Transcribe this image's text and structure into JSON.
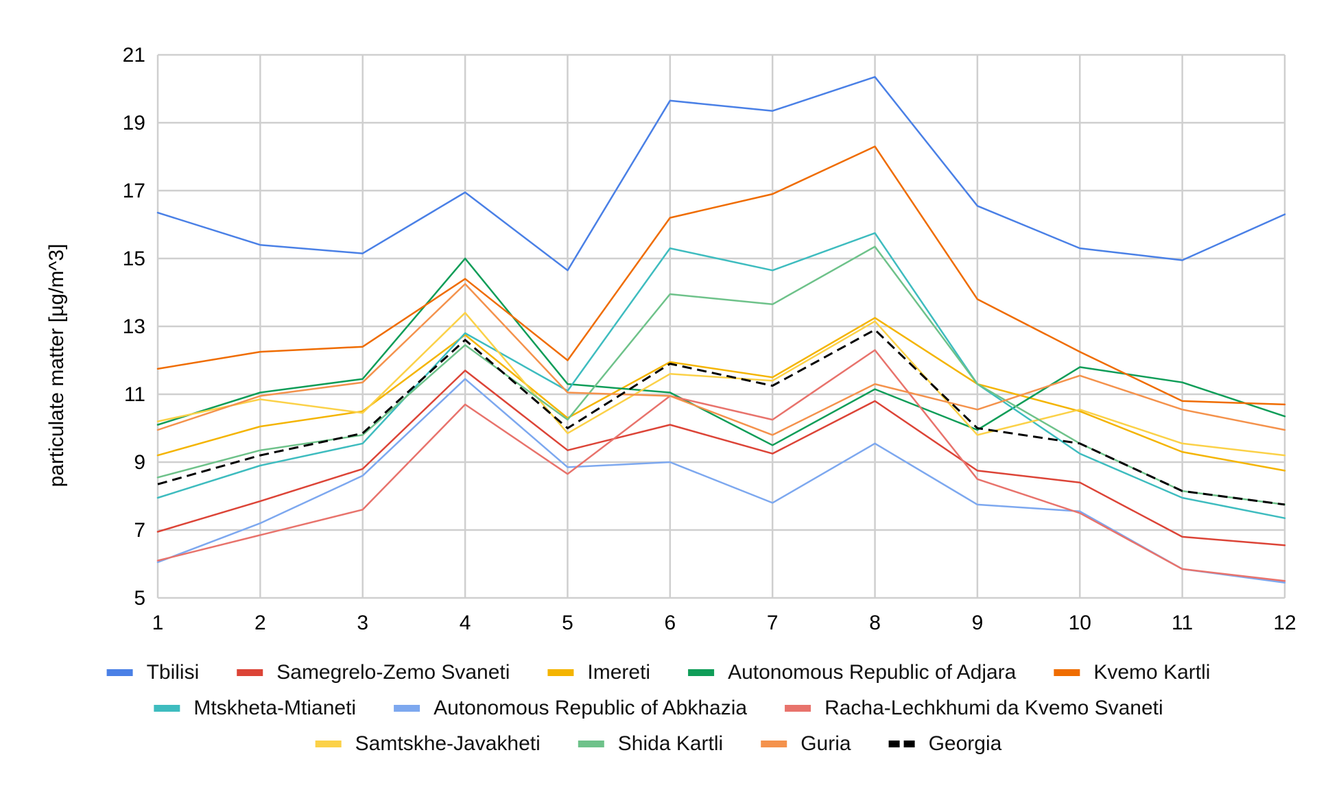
{
  "chart_data": {
    "type": "line",
    "x": [
      1,
      2,
      3,
      4,
      5,
      6,
      7,
      8,
      9,
      10,
      11,
      12
    ],
    "xlim": [
      1,
      12
    ],
    "ylim": [
      5,
      21
    ],
    "yticks": [
      5,
      7,
      9,
      11,
      13,
      15,
      17,
      19,
      21
    ],
    "xticks": [
      1,
      2,
      3,
      4,
      5,
      6,
      7,
      8,
      9,
      10,
      11,
      12
    ],
    "ylabel": "particulate matter [µg/m^3]",
    "xlabel": "",
    "grid": true,
    "legend_position": "bottom",
    "series": [
      {
        "name": "Tbilisi",
        "color": "#4a80e6",
        "width": 2.5,
        "values": [
          16.35,
          15.4,
          15.15,
          16.95,
          14.65,
          19.65,
          19.35,
          20.35,
          16.55,
          15.3,
          14.95,
          16.3
        ]
      },
      {
        "name": "Samegrelo-Zemo Svaneti",
        "color": "#dc4437",
        "width": 2.5,
        "values": [
          6.95,
          7.85,
          8.8,
          11.7,
          9.35,
          10.1,
          9.25,
          10.8,
          8.75,
          8.4,
          6.8,
          6.55
        ]
      },
      {
        "name": "Imereti",
        "color": "#f4b400",
        "width": 2.5,
        "values": [
          9.2,
          10.05,
          10.5,
          12.75,
          10.3,
          11.95,
          11.5,
          13.25,
          11.3,
          10.5,
          9.3,
          8.75
        ]
      },
      {
        "name": "Autonomous Republic of Adjara",
        "color": "#0f9d58",
        "width": 2.5,
        "values": [
          10.1,
          11.05,
          11.45,
          15.0,
          11.3,
          11.05,
          9.5,
          11.15,
          9.95,
          11.8,
          11.35,
          10.35
        ]
      },
      {
        "name": "Kvemo Kartli",
        "color": "#ef6c00",
        "width": 2.5,
        "values": [
          11.75,
          12.25,
          12.4,
          14.4,
          12.0,
          16.2,
          16.9,
          18.3,
          13.8,
          12.25,
          10.8,
          10.7
        ]
      },
      {
        "name": "Mtskheta-Mtianeti",
        "color": "#3ebcbf",
        "width": 2.5,
        "values": [
          7.95,
          8.9,
          9.55,
          12.8,
          11.1,
          15.3,
          14.65,
          15.75,
          11.3,
          9.25,
          7.95,
          7.35
        ]
      },
      {
        "name": "Autonomous Republic of Abkhazia",
        "color": "#7da8ef",
        "width": 2.5,
        "values": [
          6.05,
          7.2,
          8.6,
          11.45,
          8.85,
          9.0,
          7.8,
          9.55,
          7.75,
          7.55,
          5.85,
          5.45
        ]
      },
      {
        "name": "Racha-Lechkhumi da Kvemo Svaneti",
        "color": "#e8736c",
        "width": 2.5,
        "values": [
          6.1,
          6.85,
          7.6,
          10.7,
          8.65,
          10.95,
          10.25,
          12.3,
          8.5,
          7.5,
          5.85,
          5.5
        ]
      },
      {
        "name": "Samtskhe-Javakheti",
        "color": "#fbd148",
        "width": 2.5,
        "values": [
          10.2,
          10.85,
          10.45,
          13.4,
          9.85,
          11.6,
          11.4,
          13.15,
          9.8,
          10.55,
          9.55,
          9.2
        ]
      },
      {
        "name": "Shida Kartli",
        "color": "#6ec28a",
        "width": 2.5,
        "values": [
          8.55,
          9.35,
          9.8,
          12.45,
          10.25,
          13.95,
          13.65,
          15.35,
          11.3,
          9.55,
          8.15,
          7.75
        ]
      },
      {
        "name": "Guria",
        "color": "#f4924c",
        "width": 2.5,
        "values": [
          9.95,
          10.95,
          11.35,
          14.25,
          11.05,
          10.95,
          9.8,
          11.3,
          10.55,
          11.55,
          10.55,
          9.95
        ]
      },
      {
        "name": "Georgia",
        "color": "#000000",
        "width": 3,
        "dashed": true,
        "values": [
          8.35,
          9.2,
          9.85,
          12.6,
          10.0,
          11.9,
          11.25,
          12.9,
          10.0,
          9.55,
          8.15,
          7.75
        ]
      }
    ]
  }
}
